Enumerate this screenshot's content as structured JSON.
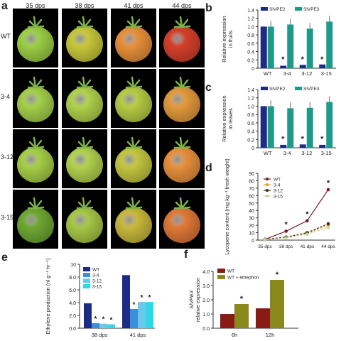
{
  "panel_labels": {
    "a": "a",
    "b": "b",
    "c": "c",
    "d": "d",
    "e": "e",
    "f": "f"
  },
  "photo_grid": {
    "columns": [
      "35 dps",
      "38 dps",
      "41 dps",
      "44 dps"
    ],
    "rows": [
      "WT",
      "3-4",
      "3-12",
      "3-15"
    ],
    "fruit_colors": [
      [
        "#9ccf45",
        "#c8c83a",
        "#e8903a",
        "#d6402a"
      ],
      [
        "#a4d04a",
        "#b0d24c",
        "#b7cc44",
        "#e39a3c"
      ],
      [
        "#a6cf48",
        "#b2d24e",
        "#c4c640",
        "#e8903c"
      ],
      [
        "#6fa832",
        "#a6c846",
        "#c8b83c",
        "#e07838"
      ]
    ],
    "calyx_color": "#7fb24a"
  },
  "chart_data": [
    {
      "id": "b",
      "type": "bar",
      "ylabel": "Relative expression in fruits",
      "ylim": [
        0,
        1.4
      ],
      "yticks": [
        "0",
        "0.2",
        "0.4",
        "0.6",
        "0.8",
        "1.0",
        "1.2",
        "1.4"
      ],
      "categories": [
        "WT",
        "3-4",
        "3-12",
        "3-15"
      ],
      "series": [
        {
          "name": "SlVPE2",
          "color": "#1c2c86",
          "values": [
            1.0,
            0.06,
            0.08,
            0.09
          ]
        },
        {
          "name": "SlVPE3",
          "color": "#1d9b8a",
          "values": [
            1.0,
            1.05,
            0.95,
            1.12
          ]
        }
      ],
      "marks": [
        "*",
        "*",
        "*"
      ]
    },
    {
      "id": "c",
      "type": "bar",
      "ylabel": "Relative expression in leaves",
      "ylim": [
        0,
        1.4
      ],
      "yticks": [
        "0",
        "0.2",
        "0.4",
        "0.6",
        "0.8",
        "1.0",
        "1.2",
        "1.4"
      ],
      "categories": [
        "WT",
        "3-4",
        "3-12",
        "3-15"
      ],
      "series": [
        {
          "name": "SlVPE2",
          "color": "#1c2c86",
          "values": [
            1.0,
            0.07,
            0.08,
            0.07
          ]
        },
        {
          "name": "SlVPE3",
          "color": "#1d9b8a",
          "values": [
            1.0,
            0.95,
            0.96,
            1.1
          ]
        }
      ],
      "marks": [
        "*",
        "*",
        "*"
      ]
    },
    {
      "id": "d",
      "type": "line",
      "ylabel": "Lycopene content (mg kg⁻¹ fresh weight)",
      "ylim": [
        0,
        90
      ],
      "yticks": [
        "0",
        "10",
        "20",
        "30",
        "40",
        "50",
        "60",
        "70",
        "80",
        "90"
      ],
      "categories": [
        "35 dps",
        "38 dps",
        "41 dps",
        "44 dps"
      ],
      "series": [
        {
          "name": "WT",
          "color": "#7a1a20",
          "values": [
            1,
            12,
            26,
            68
          ]
        },
        {
          "name": "3-4",
          "color": "#e0a030",
          "values": [
            1,
            4,
            9,
            20
          ]
        },
        {
          "name": "3-12",
          "color": "#3c2a18",
          "values": [
            1,
            4,
            10,
            22
          ]
        },
        {
          "name": "3-15",
          "color": "#c4d89a",
          "values": [
            0.5,
            3,
            8,
            17
          ]
        }
      ],
      "marks": [
        "*",
        "*",
        "*"
      ]
    },
    {
      "id": "e",
      "type": "bar",
      "ylabel": "Ethylene production (nl g⁻¹ hr⁻¹)",
      "ylim": [
        0,
        10
      ],
      "yticks": [
        "0.0",
        "2.0",
        "4.0",
        "6.0",
        "8.0",
        "10"
      ],
      "categories": [
        "38 dps",
        "41 dps"
      ],
      "series": [
        {
          "name": "WT",
          "color": "#1c2c86",
          "values": [
            3.9,
            8.3
          ]
        },
        {
          "name": "3-4",
          "color": "#3a8fd8",
          "values": [
            0.8,
            3.0
          ]
        },
        {
          "name": "3-12",
          "color": "#6ac8ec",
          "values": [
            0.7,
            4.1
          ]
        },
        {
          "name": "3-15",
          "color": "#2fd8e6",
          "values": [
            0.6,
            4.1
          ]
        }
      ],
      "marks": [
        "*",
        "*",
        "*",
        "*",
        "*",
        "*"
      ]
    },
    {
      "id": "f",
      "type": "bar",
      "ylabel": "SlVPE3 relative expression",
      "ylim": [
        0,
        4.0
      ],
      "yticks": [
        "0.0",
        "1.0",
        "2.0",
        "3.0",
        "4.0"
      ],
      "categories": [
        "6h",
        "12h"
      ],
      "series": [
        {
          "name": "WT",
          "color": "#8a1a14",
          "values": [
            1.0,
            1.4
          ]
        },
        {
          "name": "WT + ethephon",
          "color": "#8a8a1c",
          "values": [
            1.7,
            3.4
          ]
        }
      ],
      "marks": [
        "*",
        "*"
      ]
    }
  ]
}
